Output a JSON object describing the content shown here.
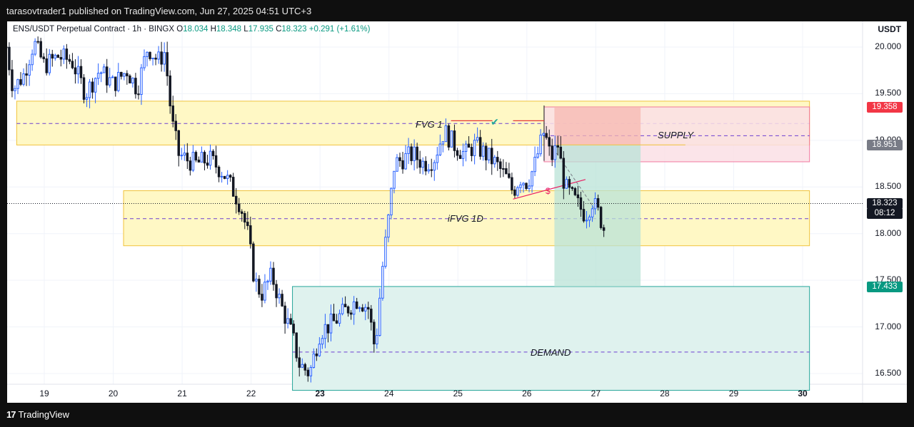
{
  "publisher_line": "tarasovtrader1 published on TradingView.com, Jun 27, 2025 04:51 UTC+3",
  "footer_logo": "TradingView",
  "header": {
    "symbol": "ENS/USDT Perpetual Contract · 1h · BINGX",
    "o_label": "O",
    "o_value": "18.034",
    "h_label": "H",
    "h_value": "18.348",
    "l_label": "L",
    "l_value": "17.935",
    "c_label": "C",
    "c_value": "18.323",
    "change": "+0.291 (+1.61%)"
  },
  "currency_label": "USDT",
  "colors": {
    "up": "#2962ff",
    "down": "#131722",
    "yellow_zone_fill": "#fff8c5",
    "yellow_zone_border": "#f0c33c",
    "supply_fill": "#fbe0e6",
    "supply_border": "#f06292",
    "red_risk": "#f7b8b0",
    "green_target": "#b9e3d7",
    "demand_fill": "#dff2ee",
    "demand_border": "#26a69a",
    "tag_red": "#f23645",
    "tag_gray": "#787b86",
    "tag_black": "#131722",
    "tag_green": "#089981"
  },
  "price_tags": {
    "supply_top": "19.358",
    "supply_mid": "18.951",
    "current": "18.323",
    "countdown": "08:12",
    "target": "17.433"
  },
  "annotations": {
    "fvg": "FVG 1",
    "supply": "SUPPLY",
    "ifvg": "iFVG 1D",
    "demand": "DEMAND",
    "dollar": "$",
    "check": "✔"
  },
  "chart_data": {
    "type": "candlestick",
    "title": "ENS/USDT Perpetual Contract · 1h · BINGX",
    "ylabel": "USDT",
    "ylim": [
      16.32,
      20.4
    ],
    "y_ticks": [
      "20.000",
      "19.500",
      "19.000",
      "18.500",
      "18.000",
      "17.500",
      "17.000",
      "16.500"
    ],
    "x_ticks": [
      {
        "label": "19",
        "bold": false
      },
      {
        "label": "20",
        "bold": false
      },
      {
        "label": "21",
        "bold": false
      },
      {
        "label": "22",
        "bold": false
      },
      {
        "label": "23",
        "bold": true
      },
      {
        "label": "24",
        "bold": false
      },
      {
        "label": "25",
        "bold": false
      },
      {
        "label": "26",
        "bold": false
      },
      {
        "label": "27",
        "bold": false
      },
      {
        "label": "28",
        "bold": false
      },
      {
        "label": "29",
        "bold": false
      },
      {
        "label": "30",
        "bold": true
      }
    ],
    "x_start_day": 18.5,
    "x_end_day": 30.1,
    "price_path": [
      [
        18.45,
        20.0
      ],
      [
        18.55,
        19.55
      ],
      [
        18.7,
        19.7
      ],
      [
        18.85,
        20.05
      ],
      [
        19.0,
        19.8
      ],
      [
        19.2,
        19.9
      ],
      [
        19.4,
        19.85
      ],
      [
        19.6,
        19.5
      ],
      [
        19.8,
        19.75
      ],
      [
        20.0,
        19.6
      ],
      [
        20.2,
        19.75
      ],
      [
        20.35,
        19.55
      ],
      [
        20.5,
        20.0
      ],
      [
        20.65,
        19.85
      ],
      [
        20.75,
        19.95
      ],
      [
        20.85,
        19.2
      ],
      [
        20.95,
        18.85
      ],
      [
        21.05,
        18.8
      ],
      [
        21.2,
        18.75
      ],
      [
        21.4,
        18.8
      ],
      [
        21.6,
        18.65
      ],
      [
        21.75,
        18.45
      ],
      [
        21.85,
        18.3
      ],
      [
        21.95,
        18.0
      ],
      [
        22.05,
        17.5
      ],
      [
        22.15,
        17.35
      ],
      [
        22.3,
        17.55
      ],
      [
        22.45,
        17.2
      ],
      [
        22.6,
        16.9
      ],
      [
        22.7,
        16.6
      ],
      [
        22.85,
        16.5
      ],
      [
        23.0,
        16.95
      ],
      [
        23.2,
        17.05
      ],
      [
        23.4,
        17.2
      ],
      [
        23.55,
        17.3
      ],
      [
        23.7,
        17.2
      ],
      [
        23.8,
        16.75
      ],
      [
        23.9,
        17.6
      ],
      [
        24.0,
        18.2
      ],
      [
        24.08,
        18.75
      ],
      [
        24.2,
        18.8
      ],
      [
        24.35,
        18.85
      ],
      [
        24.5,
        18.75
      ],
      [
        24.65,
        18.8
      ],
      [
        24.8,
        19.1
      ],
      [
        24.95,
        18.95
      ],
      [
        25.1,
        18.85
      ],
      [
        25.25,
        18.95
      ],
      [
        25.4,
        18.85
      ],
      [
        25.55,
        18.75
      ],
      [
        25.7,
        18.6
      ],
      [
        25.8,
        18.45
      ],
      [
        25.9,
        18.6
      ],
      [
        26.0,
        18.55
      ],
      [
        26.1,
        18.7
      ],
      [
        26.25,
        19.1
      ],
      [
        26.35,
        18.8
      ],
      [
        26.45,
        18.95
      ],
      [
        26.55,
        18.5
      ],
      [
        26.65,
        18.4
      ],
      [
        26.75,
        18.3
      ],
      [
        26.85,
        18.2
      ],
      [
        26.95,
        18.35
      ],
      [
        27.05,
        18.2
      ],
      [
        27.12,
        18.05
      ],
      [
        27.15,
        18.323
      ]
    ],
    "zones": [
      {
        "name": "FVG 1",
        "from_day": 18.6,
        "to_day": 30.1,
        "low": 18.95,
        "high": 19.42,
        "mid": 19.18
      },
      {
        "name": "iFVG 1D",
        "from_day": 20.15,
        "to_day": 30.1,
        "low": 17.87,
        "high": 18.46,
        "mid": 18.16
      },
      {
        "name": "SUPPLY",
        "from_day": 26.25,
        "to_day": 30.1,
        "low": 18.77,
        "high": 19.358,
        "mid": 19.05
      },
      {
        "name": "DEMAND",
        "from_day": 22.6,
        "to_day": 30.1,
        "low": 16.32,
        "high": 17.433,
        "mid": 16.73
      }
    ],
    "position": {
      "from_day": 26.4,
      "to_day": 27.65,
      "entry": 18.951,
      "stop": 19.358,
      "target": 17.433
    },
    "last_price": 18.323
  }
}
